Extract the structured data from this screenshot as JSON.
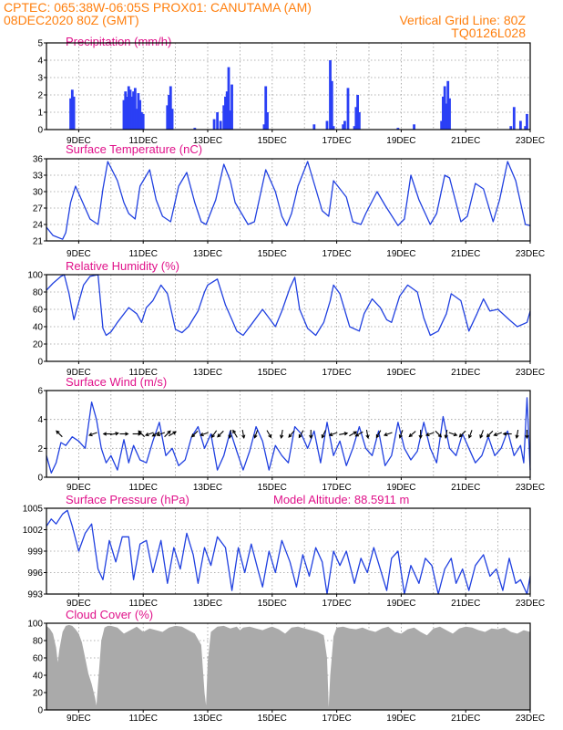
{
  "header": {
    "line1_left": "CPTEC:   065:38W-06:05S   PROX01: CANUTAMA (AM)",
    "line2_left": "08DEC2020 80Z (GMT)",
    "line2_right": "Vertical Grid Line: 80Z",
    "line3_right": "TQ0126L028"
  },
  "x_axis": {
    "range_days": [
      8.0,
      23.0
    ],
    "tick_positions_days": [
      9,
      11,
      13,
      15,
      17,
      19,
      21,
      23
    ],
    "tick_labels": [
      "9DEC",
      "11DEC",
      "13DEC",
      "15DEC",
      "17DEC",
      "19DEC",
      "21DEC",
      "23DEC"
    ]
  },
  "colors": {
    "line": "#2040e0",
    "bar": "#2a3ff5",
    "cloud": "#aaaaaa",
    "title": "#e0128a",
    "header": "#ff7f0e"
  },
  "chart_data": [
    {
      "type": "bar",
      "title": "Precipitation (mm/h)",
      "ylim": [
        0,
        5
      ],
      "yticks": [
        0,
        1,
        2,
        3,
        4,
        5
      ],
      "x": [
        8.75,
        8.8,
        8.85,
        10.4,
        10.45,
        10.5,
        10.55,
        10.6,
        10.65,
        10.7,
        10.75,
        10.8,
        10.85,
        10.9,
        10.95,
        11.0,
        11.75,
        11.8,
        11.85,
        11.9,
        12.6,
        13.2,
        13.3,
        13.4,
        13.5,
        13.55,
        13.6,
        13.65,
        13.7,
        13.75,
        14.75,
        14.8,
        14.85,
        16.3,
        16.7,
        16.8,
        16.85,
        16.9,
        17.2,
        17.25,
        17.35,
        17.55,
        17.6,
        17.65,
        17.7,
        18.9,
        19.4,
        20.25,
        20.3,
        20.35,
        20.4,
        20.45,
        20.5,
        22.4,
        22.5,
        22.7,
        22.85,
        22.9
      ],
      "values": [
        1.8,
        2.3,
        1.9,
        1.7,
        2.2,
        1.9,
        2.5,
        2.3,
        1.9,
        2.2,
        2.4,
        1.2,
        2.1,
        1.7,
        1.0,
        0.9,
        1.4,
        2.0,
        2.5,
        1.2,
        0.1,
        0.6,
        1.0,
        0.5,
        1.4,
        1.9,
        2.2,
        3.6,
        1.1,
        2.6,
        0.3,
        2.5,
        1.0,
        0.3,
        0.5,
        4.0,
        2.8,
        0.2,
        0.3,
        0.5,
        2.4,
        0.2,
        1.3,
        2.0,
        1.0,
        0.1,
        0.3,
        0.5,
        1.9,
        2.5,
        1.5,
        2.8,
        1.8,
        0.2,
        1.3,
        0.5,
        0.2,
        0.9
      ]
    },
    {
      "type": "line",
      "title": "Surface Temperature (nC)",
      "ylim": [
        21,
        36
      ],
      "yticks": [
        21,
        24,
        27,
        30,
        33,
        36
      ],
      "x": [
        8.0,
        8.2,
        8.5,
        8.6,
        8.75,
        8.9,
        9.05,
        9.2,
        9.35,
        9.6,
        9.75,
        9.9,
        10.2,
        10.4,
        10.55,
        10.75,
        10.9,
        11.2,
        11.4,
        11.6,
        11.85,
        12.1,
        12.35,
        12.6,
        12.8,
        12.95,
        13.25,
        13.5,
        13.7,
        13.85,
        14.25,
        14.45,
        14.8,
        15.1,
        15.3,
        15.45,
        15.6,
        15.8,
        16.1,
        16.35,
        16.55,
        16.75,
        16.9,
        17.3,
        17.5,
        17.75,
        17.9,
        18.25,
        18.5,
        18.9,
        19.1,
        19.3,
        19.55,
        19.9,
        20.1,
        20.35,
        20.5,
        20.85,
        21.05,
        21.3,
        21.55,
        21.85,
        22.05,
        22.3,
        22.55,
        22.85,
        23.0
      ],
      "values": [
        23.5,
        22.0,
        21.3,
        22.5,
        28.0,
        31.0,
        29.0,
        27.0,
        25.0,
        24.0,
        30.5,
        35.5,
        32.0,
        28.0,
        26.0,
        25.0,
        31.0,
        34.0,
        28.5,
        25.5,
        24.5,
        31.0,
        33.5,
        28.0,
        24.5,
        24.0,
        28.5,
        35.0,
        32.0,
        28.0,
        24.0,
        24.5,
        34.0,
        30.0,
        25.5,
        23.8,
        26.0,
        31.0,
        35.5,
        30.5,
        26.5,
        25.5,
        32.0,
        29.0,
        24.5,
        24.0,
        26.0,
        30.0,
        27.5,
        23.8,
        25.0,
        33.0,
        28.5,
        24.0,
        26.0,
        33.0,
        32.5,
        24.5,
        25.5,
        31.5,
        30.5,
        24.5,
        28.5,
        35.5,
        32.0,
        24.0,
        23.8
      ]
    },
    {
      "type": "line",
      "title": "Relative Humidity (%)",
      "ylim": [
        0,
        100
      ],
      "yticks": [
        0,
        20,
        40,
        60,
        80,
        100
      ],
      "x": [
        8.0,
        8.2,
        8.45,
        8.55,
        8.7,
        8.85,
        9.0,
        9.15,
        9.35,
        9.6,
        9.75,
        9.85,
        10.0,
        10.2,
        10.55,
        10.8,
        10.95,
        11.1,
        11.3,
        11.55,
        11.75,
        12.0,
        12.2,
        12.4,
        12.7,
        12.9,
        13.0,
        13.3,
        13.55,
        13.75,
        13.9,
        14.1,
        14.4,
        14.7,
        14.9,
        15.1,
        15.3,
        15.55,
        15.7,
        15.85,
        16.1,
        16.35,
        16.6,
        16.8,
        16.9,
        17.1,
        17.4,
        17.7,
        17.85,
        18.1,
        18.35,
        18.55,
        18.7,
        18.95,
        19.2,
        19.5,
        19.7,
        19.9,
        20.15,
        20.4,
        20.55,
        20.85,
        21.1,
        21.35,
        21.55,
        21.75,
        22.0,
        22.35,
        22.6,
        22.9,
        23.0
      ],
      "values": [
        82,
        90,
        98,
        100,
        78,
        48,
        68,
        88,
        98,
        100,
        38,
        30,
        34,
        45,
        62,
        55,
        45,
        62,
        70,
        88,
        78,
        37,
        33,
        40,
        58,
        80,
        88,
        95,
        65,
        48,
        35,
        30,
        45,
        60,
        50,
        40,
        58,
        85,
        97,
        60,
        38,
        30,
        45,
        70,
        88,
        78,
        40,
        35,
        55,
        72,
        62,
        48,
        45,
        75,
        88,
        80,
        50,
        30,
        35,
        55,
        78,
        70,
        35,
        55,
        72,
        58,
        60,
        48,
        40,
        45,
        58
      ]
    },
    {
      "type": "line",
      "title": "Surface Wind (m/s)",
      "ylim": [
        0,
        6
      ],
      "yticks": [
        0,
        2,
        4,
        6
      ],
      "x": [
        8.0,
        8.15,
        8.3,
        8.45,
        8.6,
        8.8,
        9.0,
        9.2,
        9.4,
        9.55,
        9.7,
        9.85,
        10.0,
        10.2,
        10.4,
        10.55,
        10.7,
        10.9,
        11.1,
        11.3,
        11.5,
        11.7,
        11.9,
        12.1,
        12.3,
        12.5,
        12.7,
        12.9,
        13.1,
        13.3,
        13.5,
        13.7,
        13.9,
        14.1,
        14.3,
        14.5,
        14.7,
        14.9,
        15.1,
        15.3,
        15.5,
        15.7,
        15.9,
        16.1,
        16.3,
        16.5,
        16.7,
        16.9,
        17.1,
        17.3,
        17.5,
        17.7,
        17.9,
        18.1,
        18.3,
        18.5,
        18.7,
        18.9,
        19.1,
        19.3,
        19.5,
        19.7,
        19.9,
        20.1,
        20.3,
        20.5,
        20.7,
        20.9,
        21.1,
        21.3,
        21.5,
        21.7,
        21.9,
        22.1,
        22.3,
        22.5,
        22.7,
        22.8,
        22.9,
        23.0
      ],
      "values": [
        1.5,
        0.3,
        1.0,
        2.4,
        2.2,
        2.8,
        2.5,
        2.0,
        5.2,
        4.0,
        2.0,
        1.0,
        1.5,
        0.5,
        2.6,
        1.0,
        2.2,
        1.2,
        1.0,
        2.5,
        3.8,
        1.5,
        2.0,
        0.8,
        1.2,
        2.8,
        3.5,
        2.0,
        3.0,
        0.5,
        1.5,
        3.2,
        1.8,
        0.5,
        1.8,
        3.5,
        2.5,
        0.5,
        2.2,
        1.5,
        1.0,
        3.5,
        3.0,
        2.0,
        3.2,
        1.0,
        3.8,
        1.5,
        2.5,
        0.8,
        2.0,
        3.5,
        2.0,
        1.5,
        3.2,
        0.8,
        1.5,
        3.8,
        2.0,
        1.2,
        1.8,
        3.8,
        2.0,
        1.0,
        4.2,
        2.0,
        1.5,
        3.0,
        2.0,
        1.0,
        1.5,
        2.8,
        1.5,
        2.0,
        3.2,
        1.5,
        2.2,
        1.0,
        5.5,
        0.5
      ]
    },
    {
      "type": "line",
      "title": "Surface Pressure (hPa)",
      "subtitle": "Model Altitude: 88.5911 m",
      "ylim": [
        993,
        1005
      ],
      "yticks": [
        993,
        996,
        999,
        1002,
        1005
      ],
      "x": [
        8.0,
        8.15,
        8.3,
        8.5,
        8.65,
        8.8,
        9.0,
        9.2,
        9.4,
        9.6,
        9.75,
        9.95,
        10.15,
        10.35,
        10.55,
        10.7,
        10.9,
        11.1,
        11.3,
        11.55,
        11.75,
        11.95,
        12.15,
        12.35,
        12.55,
        12.7,
        12.9,
        13.1,
        13.3,
        13.55,
        13.75,
        13.95,
        14.15,
        14.35,
        14.55,
        14.7,
        14.9,
        15.1,
        15.3,
        15.55,
        15.75,
        15.95,
        16.15,
        16.35,
        16.55,
        16.7,
        16.9,
        17.1,
        17.3,
        17.55,
        17.75,
        17.95,
        18.15,
        18.35,
        18.55,
        18.7,
        18.9,
        19.1,
        19.3,
        19.55,
        19.75,
        19.95,
        20.15,
        20.35,
        20.55,
        20.7,
        20.9,
        21.1,
        21.3,
        21.55,
        21.75,
        21.95,
        22.15,
        22.35,
        22.55,
        22.7,
        22.9,
        23.0
      ],
      "values": [
        1002.5,
        1003.5,
        1002.8,
        1004.2,
        1004.7,
        1002.5,
        999.0,
        1001.5,
        1002.8,
        996.5,
        995.0,
        1000.5,
        997.5,
        1001.0,
        1001.0,
        995.0,
        1000.0,
        1000.5,
        996.0,
        1000.5,
        994.5,
        999.5,
        996.5,
        1001.5,
        998.5,
        994.5,
        999.5,
        997.0,
        1001.0,
        999.5,
        993.5,
        999.5,
        996.0,
        1000.0,
        996.5,
        994.0,
        999.0,
        996.0,
        1000.5,
        997.5,
        994.0,
        998.5,
        995.5,
        999.5,
        997.5,
        993.0,
        999.0,
        997.0,
        999.0,
        994.5,
        998.0,
        996.0,
        999.5,
        996.5,
        993.5,
        998.0,
        999.0,
        992.5,
        997.0,
        994.5,
        998.0,
        997.0,
        993.0,
        996.5,
        998.0,
        994.5,
        996.5,
        993.5,
        997.0,
        998.5,
        995.5,
        996.5,
        993.5,
        998.0,
        994.5,
        995.0,
        993.0,
        995.5
      ]
    },
    {
      "type": "area",
      "title": "Cloud Cover (%)",
      "ylim": [
        0,
        100
      ],
      "yticks": [
        0,
        20,
        40,
        60,
        80,
        100
      ],
      "x": [
        8.0,
        8.1,
        8.2,
        8.3,
        8.35,
        8.4,
        8.5,
        8.6,
        8.7,
        8.8,
        8.9,
        9.0,
        9.1,
        9.2,
        9.3,
        9.4,
        9.5,
        9.55,
        9.6,
        9.7,
        9.8,
        9.9,
        10.0,
        10.2,
        10.4,
        10.6,
        10.8,
        11.0,
        11.2,
        11.4,
        11.6,
        11.8,
        12.0,
        12.2,
        12.4,
        12.6,
        12.8,
        12.9,
        12.95,
        13.0,
        13.1,
        13.3,
        13.5,
        13.7,
        13.9,
        14.0,
        14.1,
        14.3,
        14.5,
        14.7,
        14.9,
        15.0,
        15.2,
        15.4,
        15.6,
        15.8,
        16.0,
        16.2,
        16.4,
        16.6,
        16.7,
        16.75,
        16.8,
        16.9,
        17.0,
        17.2,
        17.4,
        17.6,
        17.8,
        18.0,
        18.2,
        18.4,
        18.6,
        18.8,
        19.0,
        19.2,
        19.4,
        19.6,
        19.8,
        20.0,
        20.2,
        20.4,
        20.6,
        20.8,
        21.0,
        21.2,
        21.4,
        21.6,
        21.8,
        22.0,
        22.2,
        22.4,
        22.6,
        22.8,
        23.0
      ],
      "values": [
        97,
        94,
        88,
        72,
        55,
        70,
        90,
        97,
        98,
        97,
        93,
        88,
        78,
        60,
        42,
        30,
        15,
        5,
        30,
        80,
        95,
        97,
        97,
        95,
        88,
        92,
        96,
        90,
        94,
        92,
        90,
        95,
        97,
        96,
        92,
        88,
        75,
        20,
        5,
        55,
        90,
        96,
        97,
        94,
        96,
        92,
        95,
        96,
        94,
        92,
        95,
        96,
        93,
        88,
        95,
        96,
        94,
        92,
        90,
        86,
        60,
        3,
        40,
        85,
        95,
        96,
        94,
        93,
        95,
        92,
        90,
        94,
        96,
        90,
        88,
        93,
        95,
        90,
        86,
        94,
        96,
        92,
        88,
        94,
        96,
        95,
        92,
        90,
        94,
        93,
        95,
        90,
        88,
        92,
        90
      ]
    }
  ],
  "wind_arrows": {
    "x": [
      8.4,
      9.45,
      9.9,
      10.1,
      10.4,
      10.8,
      10.95,
      11.2,
      11.4,
      11.55,
      11.75,
      11.9,
      12.6,
      12.9,
      13.2,
      13.4,
      13.7,
      13.85,
      14.1,
      14.5,
      14.9,
      15.3,
      15.6,
      15.9,
      16.2,
      16.6,
      16.9,
      17.2,
      17.5,
      17.7,
      17.95,
      18.3,
      18.6,
      19.0,
      19.35,
      19.6,
      19.9,
      20.15,
      20.4,
      20.6,
      20.9,
      21.15,
      21.5,
      21.75,
      22.0,
      22.3,
      22.6,
      22.9
    ],
    "angle_deg": [
      135,
      200,
      180,
      10,
      0,
      0,
      135,
      200,
      210,
      200,
      45,
      30,
      225,
      200,
      235,
      225,
      260,
      120,
      280,
      250,
      300,
      260,
      230,
      240,
      270,
      245,
      200,
      10,
      30,
      210,
      280,
      240,
      200,
      250,
      220,
      270,
      200,
      315,
      260,
      340,
      225,
      250,
      250,
      225,
      200,
      180,
      260,
      270
    ]
  }
}
